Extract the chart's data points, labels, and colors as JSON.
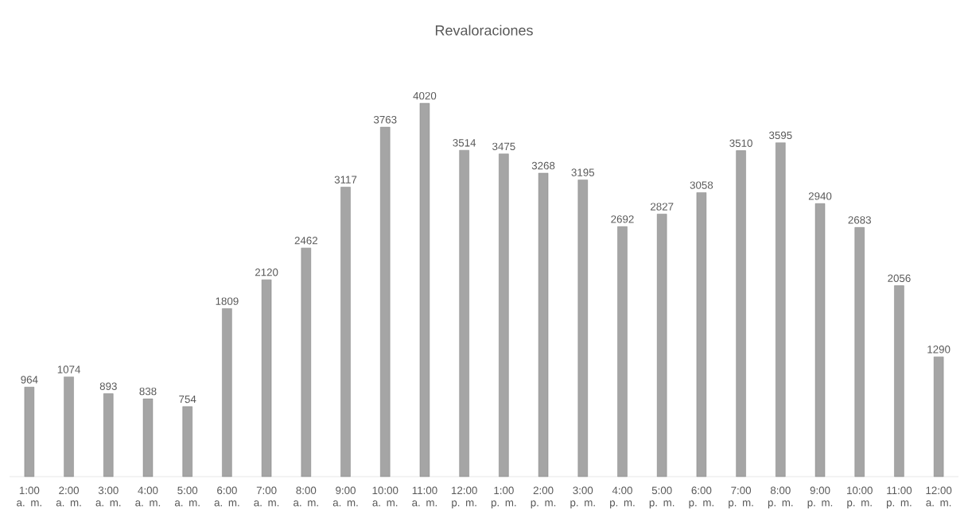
{
  "chart_data": {
    "type": "bar",
    "title": "Revaloraciones",
    "categories": [
      "1:00 a. m.",
      "2:00 a. m.",
      "3:00 a. m.",
      "4:00 a. m.",
      "5:00 a. m.",
      "6:00 a. m.",
      "7:00 a. m.",
      "8:00 a. m.",
      "9:00 a. m.",
      "10:00 a. m.",
      "11:00 a. m.",
      "12:00 p. m.",
      "1:00 p. m.",
      "2:00 p. m.",
      "3:00 p. m.",
      "4:00 p. m.",
      "5:00 p. m.",
      "6:00 p. m.",
      "7:00 p. m.",
      "8:00 p. m.",
      "9:00 p. m.",
      "10:00 p. m.",
      "11:00 p. m.",
      "12:00 a. m."
    ],
    "values": [
      964,
      1074,
      893,
      838,
      754,
      1809,
      2120,
      2462,
      3117,
      3763,
      4020,
      3514,
      3475,
      3268,
      3195,
      2692,
      2827,
      3058,
      3510,
      3595,
      2940,
      2683,
      2056,
      1290
    ],
    "color": "#a5a5a5",
    "data_labels": true
  }
}
